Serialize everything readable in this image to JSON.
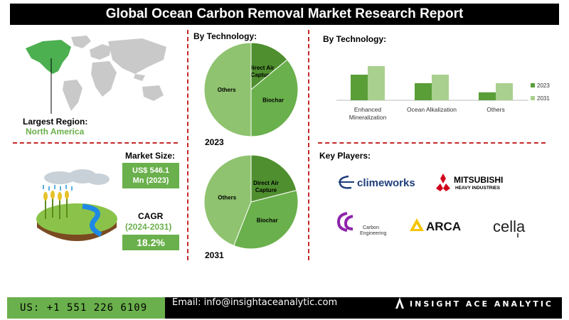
{
  "header": {
    "title": "Global Ocean Carbon Removal Market Research Report"
  },
  "left": {
    "largest_region_label": "Largest Region:",
    "largest_region_value": "North America",
    "market_size_label": "Market Size:",
    "market_size_line1": "US$ 546.1",
    "market_size_line2": "Mn (2023)",
    "cagr_label": "CAGR",
    "cagr_period": "(2024-2031)",
    "cagr_value": "18.2%"
  },
  "middle": {
    "heading": "By Technology:",
    "year_2023": "2023",
    "year_2031": "2031"
  },
  "right": {
    "heading": "By Technology:",
    "key_players_heading": "Key Players:"
  },
  "chart_data": [
    {
      "type": "pie",
      "year": "2023",
      "slices": [
        {
          "label": "Direct Air Capture",
          "value": 14,
          "color": "#4f8f2f"
        },
        {
          "label": "Biochar",
          "value": 36,
          "color": "#6ab04c"
        },
        {
          "label": "Others",
          "value": 50,
          "color": "#8fc36f"
        }
      ]
    },
    {
      "type": "pie",
      "year": "2031",
      "slices": [
        {
          "label": "Direct Air Capture",
          "value": 21,
          "color": "#4f8f2f"
        },
        {
          "label": "Biochar",
          "value": 35,
          "color": "#6ab04c"
        },
        {
          "label": "Others",
          "value": 44,
          "color": "#8fc36f"
        }
      ]
    },
    {
      "type": "bar",
      "categories": [
        "Enhanced Mineralization",
        "Ocean Alkalization",
        "Others"
      ],
      "series": [
        {
          "name": "2023",
          "values": [
            45,
            30,
            14
          ],
          "color": "#5a9e38"
        },
        {
          "name": "2031",
          "values": [
            60,
            45,
            30
          ],
          "color": "#a9d08e"
        }
      ],
      "ylim": [
        0,
        70
      ],
      "legend": "right"
    }
  ],
  "players": [
    {
      "name": "climeworks",
      "text": "climeworks",
      "icon": "climeworks-swirl-icon",
      "color": "#1f3d7a"
    },
    {
      "name": "mitsubishi",
      "text": "MITSUBISHI",
      "subtext": "HEAVY INDUSTRIES",
      "icon": "three-diamonds-icon",
      "color": "#d0021b"
    },
    {
      "name": "carbon-engineering",
      "text": "Carbon Engineering",
      "icon": "carbon-engineering-icon",
      "color": "#8e24aa"
    },
    {
      "name": "arca",
      "text": "ARCA",
      "icon": "arca-triangle-icon",
      "color": "#f5c400"
    },
    {
      "name": "cella",
      "text": "cella",
      "icon": "cella-logo",
      "color": "#222222"
    }
  ],
  "footer": {
    "phone": "US: +1 551 226 6109",
    "email": "Email: info@insightaceanalytic.com",
    "brand": "INSIGHT ACE ANALYTIC"
  }
}
